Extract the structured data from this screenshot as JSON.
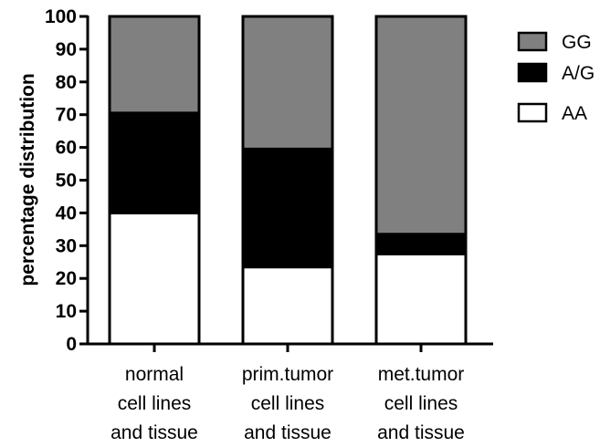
{
  "chart_data": {
    "type": "bar",
    "stacked": true,
    "categories": [
      [
        "normal",
        "cell lines",
        "and tissue"
      ],
      [
        "prim.tumor",
        "cell lines",
        "and tissue"
      ],
      [
        "met.tumor",
        "cell lines",
        "and tissue"
      ]
    ],
    "series": [
      {
        "name": "AA",
        "values": [
          40,
          23.5,
          27.5
        ],
        "color": "#ffffff"
      },
      {
        "name": "A/G",
        "values": [
          30.5,
          36,
          6
        ],
        "color": "#000000"
      },
      {
        "name": "GG",
        "values": [
          29.5,
          40.5,
          66.5
        ],
        "color": "#808080"
      }
    ],
    "legend_order": [
      "GG",
      "A/G",
      "AA"
    ],
    "legend_position": "top-right",
    "ylabel": "percentage distribution",
    "xlabel": "",
    "ylim": [
      0,
      100
    ],
    "yticks": [
      0,
      10,
      20,
      30,
      40,
      50,
      60,
      70,
      80,
      90,
      100
    ],
    "grid": false
  }
}
